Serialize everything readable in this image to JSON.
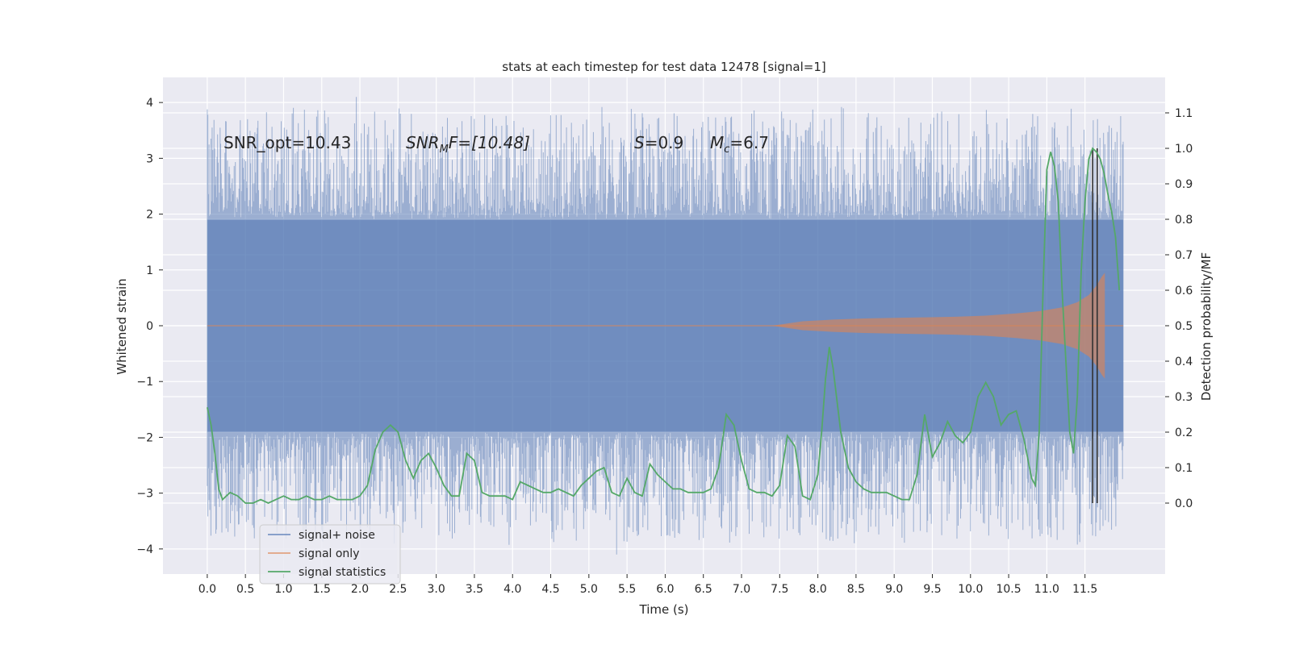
{
  "chart_data": {
    "type": "line",
    "title": "stats at each timestep for test data 12478 [signal=1]",
    "xlabel": "Time (s)",
    "ylabel_left": "Whitened strain",
    "ylabel_right": "Detection probability/MF",
    "xlim": [
      -0.58,
      12.55
    ],
    "ylim_left": [
      -4.45,
      4.45
    ],
    "ylim_right": [
      -0.2,
      1.2
    ],
    "x_ticks": [
      0.0,
      0.5,
      1.0,
      1.5,
      2.0,
      2.5,
      3.0,
      3.5,
      4.0,
      4.5,
      5.0,
      5.5,
      6.0,
      6.5,
      7.0,
      7.5,
      8.0,
      8.5,
      9.0,
      9.5,
      10.0,
      10.5,
      11.0,
      11.5
    ],
    "x_tick_labels": [
      "0.0",
      "0.5",
      "1.0",
      "1.5",
      "2.0",
      "2.5",
      "3.0",
      "3.5",
      "4.0",
      "4.5",
      "5.0",
      "5.5",
      "6.0",
      "6.5",
      "7.0",
      "7.5",
      "8.0",
      "8.5",
      "9.0",
      "9.5",
      "10.0",
      "10.5",
      "11.0",
      "11.5"
    ],
    "y_ticks_left": [
      -4,
      -3,
      -2,
      -1,
      0,
      1,
      2,
      3,
      4
    ],
    "y_tick_labels_left": [
      "−4",
      "−3",
      "−2",
      "−1",
      "0",
      "1",
      "2",
      "3",
      "4"
    ],
    "y_ticks_right": [
      0.0,
      0.1,
      0.2,
      0.3,
      0.4,
      0.5,
      0.6,
      0.7,
      0.8,
      0.9,
      1.0,
      1.1
    ],
    "y_tick_labels_right": [
      "0.0",
      "0.1",
      "0.2",
      "0.3",
      "0.4",
      "0.5",
      "0.6",
      "0.7",
      "0.8",
      "0.9",
      "1.0",
      "1.1"
    ],
    "grid": true,
    "legend_position": "lower-left",
    "annotations": {
      "snr_opt": "SNR_opt=10.43",
      "snr_mf_base": "SNR",
      "snr_mf_sub": "M",
      "snr_mf_rest": "F=[10.48]",
      "s_var": "S",
      "s_rest": "=0.9",
      "mc_var": "M",
      "mc_sub": "c",
      "mc_rest": "=6.7"
    },
    "series": [
      {
        "name": "signal+ noise",
        "color": "#4c72b0",
        "kind": "noise",
        "t_range": [
          0.0,
          12.0
        ],
        "core_amplitude": 1.9,
        "peak_range": [
          -4.1,
          4.1
        ]
      },
      {
        "name": "signal only",
        "color": "#dd8452",
        "kind": "chirp",
        "envelope": {
          "t": [
            7.4,
            7.8,
            8.2,
            8.6,
            9.0,
            9.4,
            9.8,
            10.2,
            10.6,
            10.9,
            11.2,
            11.4,
            11.55,
            11.65,
            11.72,
            11.76
          ],
          "amp": [
            0.0,
            0.08,
            0.11,
            0.13,
            0.14,
            0.15,
            0.16,
            0.18,
            0.22,
            0.26,
            0.33,
            0.42,
            0.55,
            0.72,
            0.88,
            0.95
          ]
        }
      },
      {
        "name": "signal statistics",
        "color": "#55a868",
        "kind": "line",
        "x": [
          0.0,
          0.05,
          0.1,
          0.15,
          0.2,
          0.25,
          0.3,
          0.4,
          0.5,
          0.6,
          0.7,
          0.8,
          0.9,
          1.0,
          1.1,
          1.2,
          1.3,
          1.4,
          1.5,
          1.6,
          1.7,
          1.8,
          1.9,
          2.0,
          2.1,
          2.2,
          2.3,
          2.4,
          2.5,
          2.6,
          2.7,
          2.8,
          2.9,
          3.0,
          3.1,
          3.2,
          3.3,
          3.4,
          3.5,
          3.6,
          3.7,
          3.8,
          3.9,
          4.0,
          4.1,
          4.2,
          4.3,
          4.4,
          4.5,
          4.6,
          4.7,
          4.8,
          4.9,
          5.0,
          5.1,
          5.2,
          5.3,
          5.4,
          5.5,
          5.6,
          5.7,
          5.8,
          5.9,
          6.0,
          6.1,
          6.2,
          6.3,
          6.4,
          6.5,
          6.6,
          6.7,
          6.8,
          6.9,
          7.0,
          7.1,
          7.2,
          7.3,
          7.4,
          7.5,
          7.6,
          7.7,
          7.8,
          7.9,
          8.0,
          8.05,
          8.1,
          8.15,
          8.2,
          8.3,
          8.4,
          8.5,
          8.6,
          8.7,
          8.8,
          8.9,
          9.0,
          9.1,
          9.2,
          9.3,
          9.4,
          9.5,
          9.6,
          9.7,
          9.8,
          9.9,
          10.0,
          10.1,
          10.2,
          10.3,
          10.4,
          10.5,
          10.6,
          10.7,
          10.8,
          10.85,
          10.9,
          10.95,
          11.0,
          11.05,
          11.1,
          11.15,
          11.2,
          11.25,
          11.3,
          11.35,
          11.4,
          11.45,
          11.5,
          11.55,
          11.6,
          11.65,
          11.7,
          11.75,
          11.8,
          11.85,
          11.9,
          11.95
        ],
        "y": [
          0.27,
          0.22,
          0.14,
          0.04,
          0.01,
          0.02,
          0.03,
          0.02,
          0.0,
          0.0,
          0.01,
          0.0,
          0.01,
          0.02,
          0.01,
          0.01,
          0.02,
          0.01,
          0.01,
          0.02,
          0.01,
          0.01,
          0.01,
          0.02,
          0.05,
          0.15,
          0.2,
          0.22,
          0.2,
          0.12,
          0.07,
          0.12,
          0.14,
          0.1,
          0.05,
          0.02,
          0.02,
          0.14,
          0.12,
          0.03,
          0.02,
          0.02,
          0.02,
          0.01,
          0.06,
          0.05,
          0.04,
          0.03,
          0.03,
          0.04,
          0.03,
          0.02,
          0.05,
          0.07,
          0.09,
          0.1,
          0.03,
          0.02,
          0.07,
          0.03,
          0.02,
          0.11,
          0.08,
          0.06,
          0.04,
          0.04,
          0.03,
          0.03,
          0.03,
          0.04,
          0.1,
          0.25,
          0.22,
          0.12,
          0.04,
          0.03,
          0.03,
          0.02,
          0.05,
          0.19,
          0.16,
          0.02,
          0.01,
          0.08,
          0.2,
          0.35,
          0.44,
          0.38,
          0.2,
          0.1,
          0.06,
          0.04,
          0.03,
          0.03,
          0.03,
          0.02,
          0.01,
          0.01,
          0.08,
          0.25,
          0.13,
          0.17,
          0.23,
          0.19,
          0.17,
          0.2,
          0.3,
          0.34,
          0.3,
          0.22,
          0.25,
          0.26,
          0.18,
          0.07,
          0.05,
          0.2,
          0.6,
          0.94,
          0.99,
          0.95,
          0.85,
          0.6,
          0.4,
          0.2,
          0.14,
          0.3,
          0.65,
          0.85,
          0.97,
          1.0,
          0.99,
          0.97,
          0.93,
          0.87,
          0.82,
          0.75,
          0.6
        ]
      }
    ],
    "vertical_lines": [
      11.6,
      11.66
    ]
  }
}
